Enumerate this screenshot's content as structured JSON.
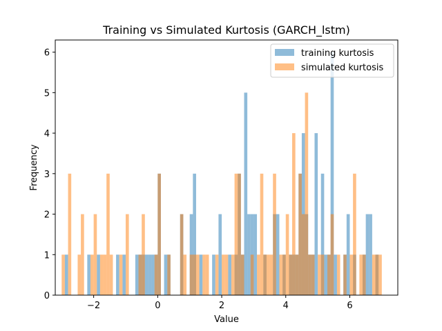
{
  "chart_data": {
    "type": "bar",
    "title": "Training vs Simulated Kurtosis (GARCH_lstm)",
    "xlabel": "Value",
    "ylabel": "Frequency",
    "xlim": [
      -3.2,
      7.5
    ],
    "ylim": [
      0,
      6.3
    ],
    "xticks": [
      -2,
      0,
      2,
      4,
      6
    ],
    "xtick_labels": [
      "−2",
      "0",
      "2",
      "4",
      "6"
    ],
    "yticks": [
      0,
      1,
      2,
      3,
      4,
      5,
      6
    ],
    "ytick_labels": [
      "0",
      "1",
      "2",
      "3",
      "4",
      "5",
      "6"
    ],
    "legend_position": "top-right",
    "series": [
      {
        "name": "training kurtosis",
        "color": "#1f77b4",
        "opacity": 0.5,
        "bin_width": 0.1,
        "x": [
          -2.85,
          -2.15,
          -1.85,
          -1.25,
          -1.05,
          -0.65,
          -0.55,
          -0.45,
          -0.35,
          -0.25,
          -0.15,
          -0.05,
          0.05,
          0.25,
          0.35,
          0.75,
          1.05,
          1.15,
          1.35,
          1.75,
          1.95,
          2.25,
          2.45,
          2.55,
          2.65,
          2.75,
          2.85,
          2.95,
          3.05,
          3.35,
          3.65,
          3.75,
          3.95,
          4.15,
          4.25,
          4.35,
          4.45,
          4.55,
          4.65,
          4.75,
          4.85,
          4.95,
          5.15,
          5.25,
          5.35,
          5.45,
          5.55,
          5.85,
          5.95,
          6.15,
          6.45,
          6.55,
          6.65,
          6.85
        ],
        "y": [
          1,
          1,
          1,
          1,
          1,
          1,
          1,
          1,
          1,
          1,
          1,
          1,
          3,
          1,
          1,
          2,
          2,
          3,
          1,
          1,
          2,
          1,
          1,
          3,
          1,
          5,
          2,
          2,
          2,
          1,
          2,
          2,
          1,
          1,
          1,
          1,
          3,
          4,
          2,
          1,
          1,
          4,
          3,
          1,
          1,
          6,
          1,
          1,
          2,
          1,
          1,
          2,
          2,
          1
        ]
      },
      {
        "name": "simulated kurtosis",
        "color": "#ff7f0e",
        "opacity": 0.5,
        "bin_width": 0.1,
        "x": [
          -2.95,
          -2.75,
          -2.45,
          -2.35,
          -2.05,
          -1.95,
          -1.75,
          -1.65,
          -1.55,
          -1.45,
          -1.15,
          -0.95,
          -0.55,
          -0.45,
          -0.05,
          0.05,
          0.35,
          0.75,
          0.85,
          1.05,
          1.15,
          1.25,
          1.45,
          1.55,
          1.85,
          2.05,
          2.15,
          2.35,
          2.45,
          2.55,
          2.65,
          2.95,
          3.15,
          3.25,
          3.35,
          3.45,
          3.55,
          3.65,
          3.85,
          3.95,
          4.05,
          4.15,
          4.25,
          4.35,
          4.45,
          4.55,
          4.65,
          4.75,
          4.85,
          5.05,
          5.15,
          5.35,
          5.45,
          5.65,
          5.85,
          6.05,
          6.15,
          6.35,
          6.45,
          6.75,
          6.85,
          6.95
        ],
        "y": [
          1,
          3,
          1,
          2,
          1,
          2,
          1,
          1,
          3,
          1,
          1,
          2,
          1,
          2,
          1,
          3,
          1,
          2,
          1,
          1,
          1,
          1,
          1,
          1,
          1,
          1,
          1,
          1,
          3,
          3,
          1,
          1,
          1,
          3,
          1,
          1,
          1,
          3,
          1,
          1,
          2,
          1,
          4,
          1,
          3,
          2,
          5,
          1,
          1,
          1,
          1,
          1,
          2,
          1,
          1,
          1,
          3,
          1,
          1,
          1,
          1,
          1
        ]
      }
    ]
  }
}
